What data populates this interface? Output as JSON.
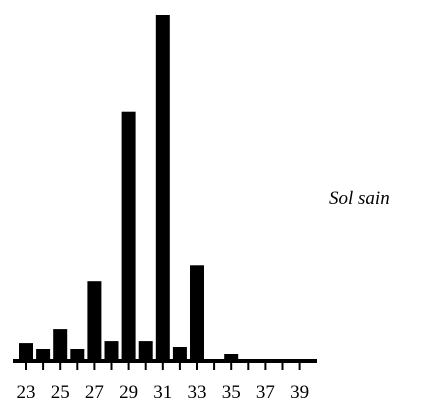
{
  "chart_data": {
    "type": "bar",
    "x": [
      23,
      24,
      25,
      26,
      27,
      28,
      29,
      30,
      31,
      32,
      33,
      34,
      35,
      36,
      37,
      38,
      39
    ],
    "values": [
      18,
      12,
      32,
      12,
      80,
      20,
      250,
      20,
      347,
      14,
      96,
      0,
      7,
      0,
      0,
      0,
      0
    ],
    "tick_labels": [
      "23",
      "25",
      "27",
      "29",
      "31",
      "33",
      "35",
      "37",
      "39"
    ],
    "annotation": "Sol sain",
    "title": "",
    "xlabel": "",
    "ylabel": "",
    "grid": false,
    "colors": {
      "bar": "#000000",
      "axis": "#000000"
    }
  }
}
